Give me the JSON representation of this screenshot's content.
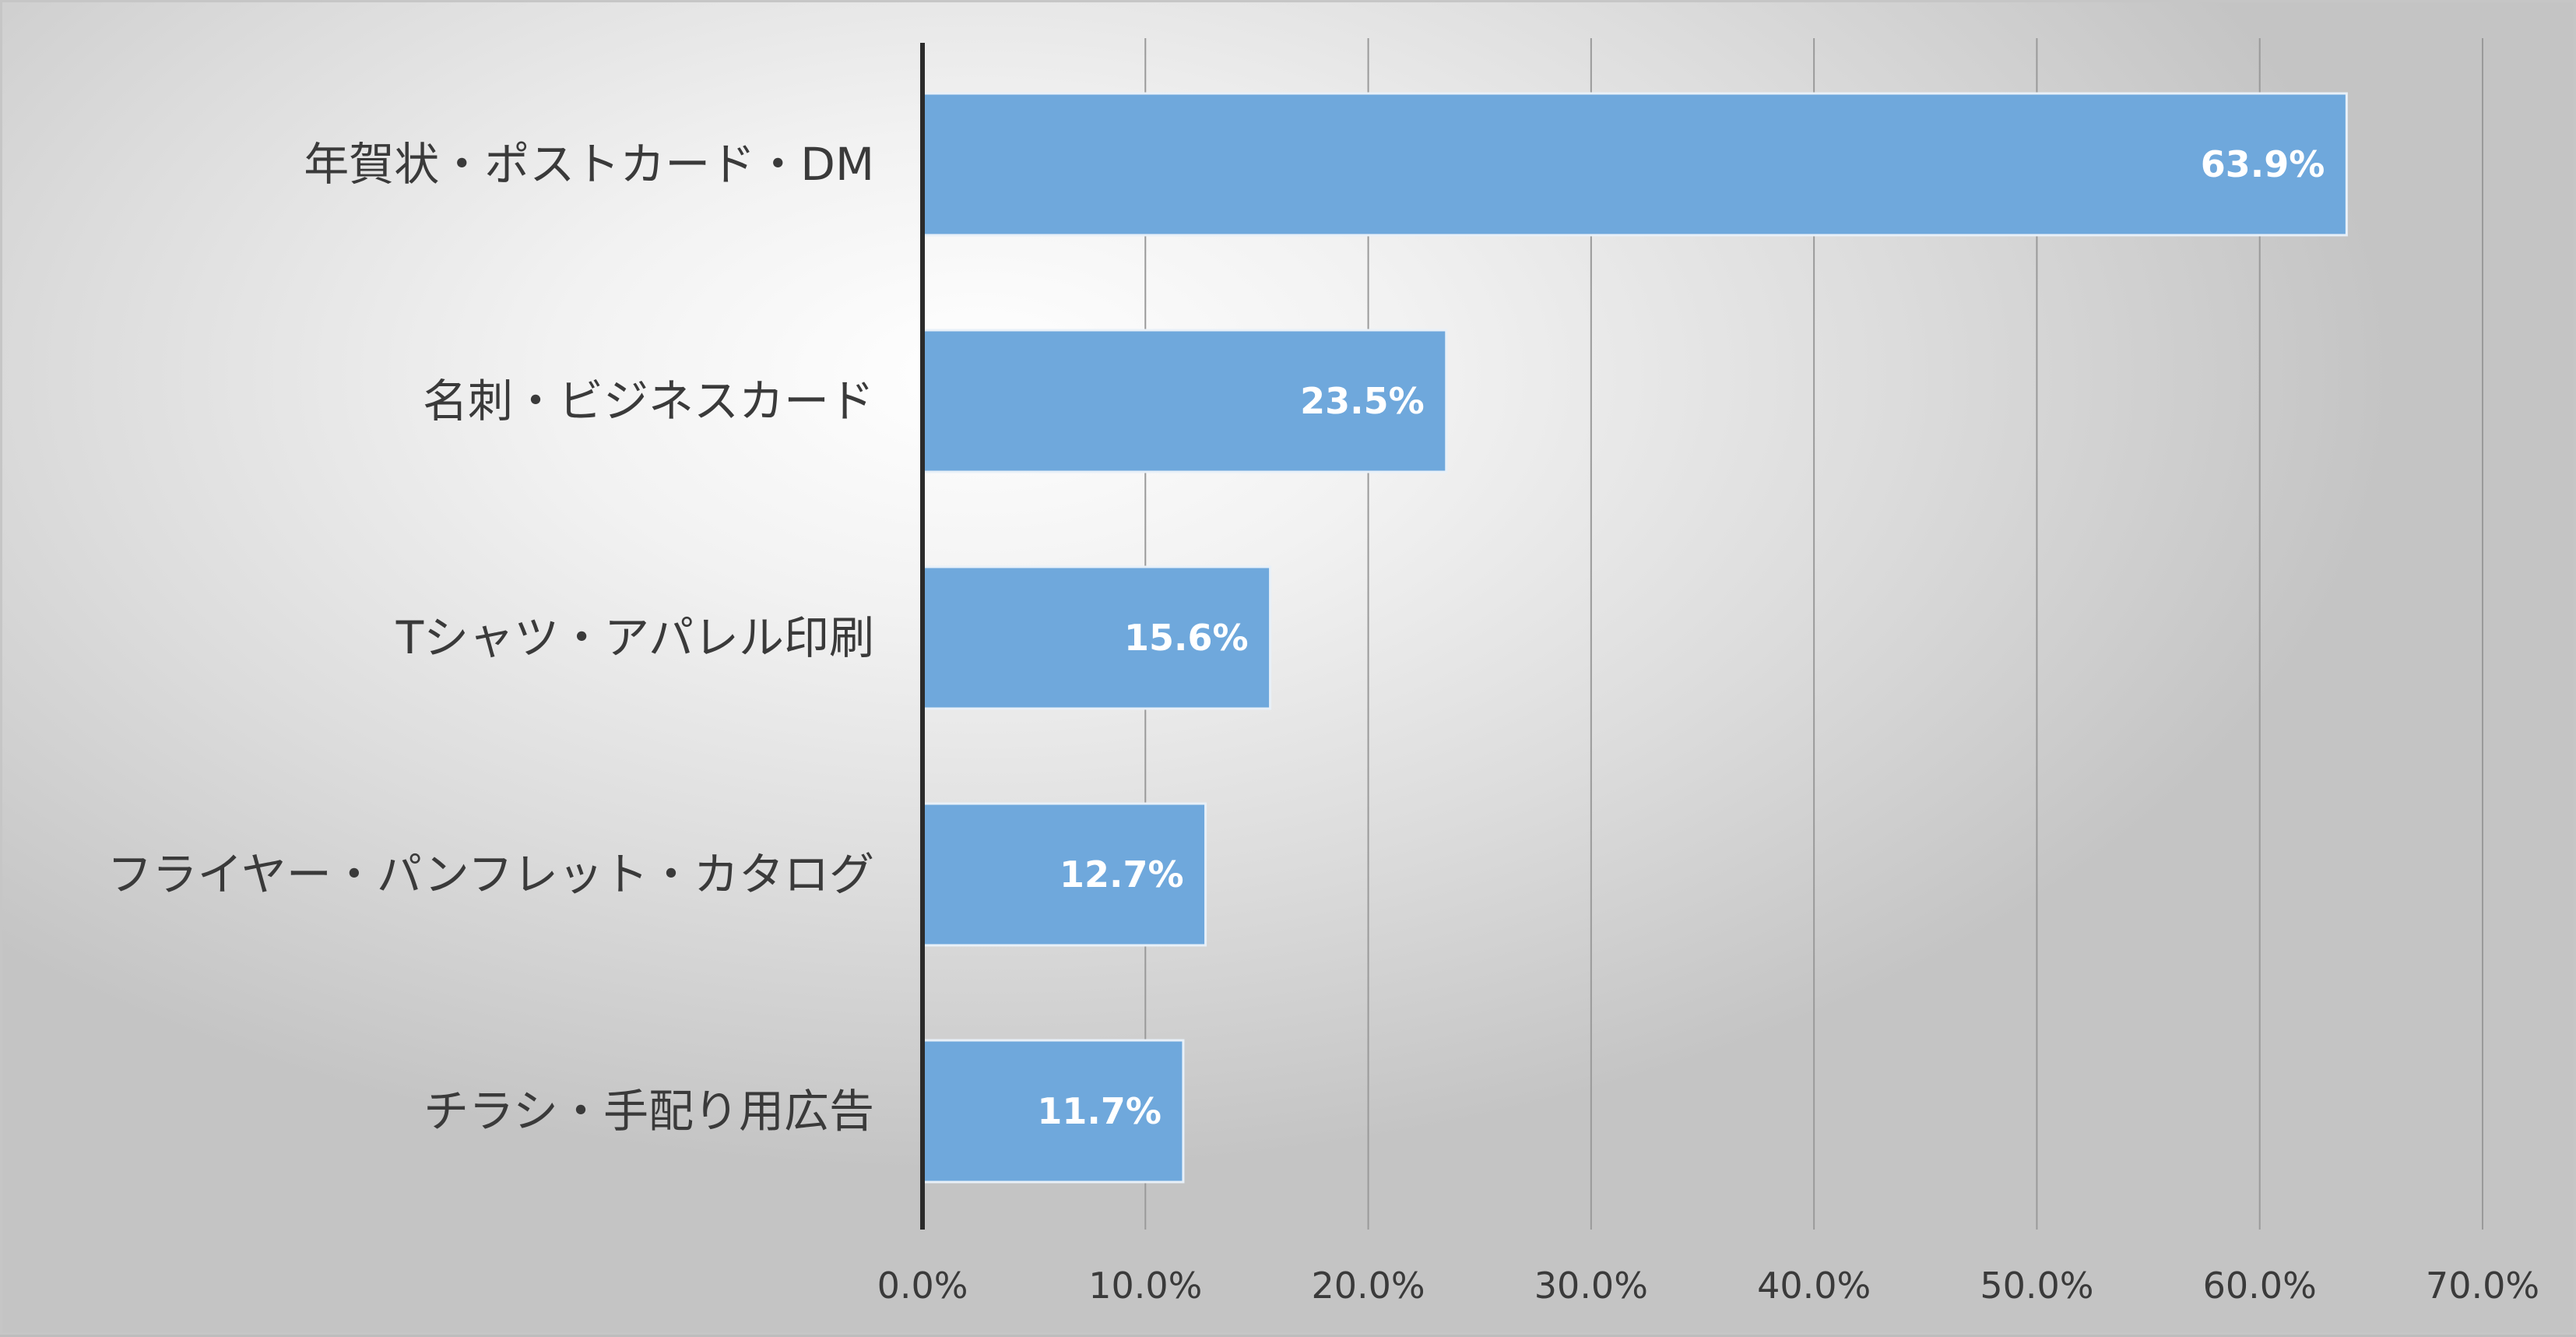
{
  "chart_data": {
    "type": "bar",
    "orientation": "horizontal",
    "categories": [
      "年賀状・ポストカード・DM",
      "名刺・ビジネスカード",
      "Tシャツ・アパレル印刷",
      "フライヤー・パンフレット・カタログ",
      "チラシ・手配り用広告"
    ],
    "values": [
      63.9,
      23.5,
      15.6,
      12.7,
      11.7
    ],
    "data_labels": [
      "63.9%",
      "23.5%",
      "15.6%",
      "12.7%",
      "11.7%"
    ],
    "x_ticks": [
      "0.0%",
      "10.0%",
      "20.0%",
      "30.0%",
      "40.0%",
      "50.0%",
      "60.0%",
      "70.0%"
    ],
    "xlim": [
      0,
      70
    ],
    "title": "",
    "xlabel": "",
    "ylabel": "",
    "grid": true,
    "legend": "none",
    "colors": {
      "bar": "#6fa8dc",
      "bar_edge": "#e8f0f8",
      "axis": "#2b2b2b",
      "grid": "#9a9a9a"
    }
  }
}
